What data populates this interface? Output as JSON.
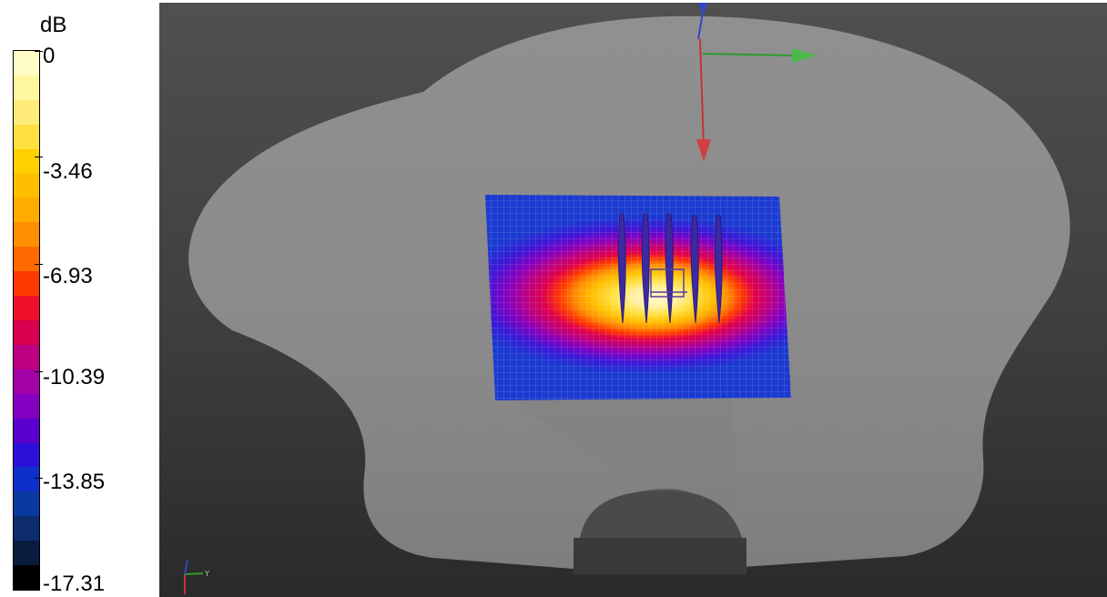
{
  "legend": {
    "unit": "dB",
    "ticks": [
      {
        "label": "0",
        "value": 0
      },
      {
        "label": "-3.46",
        "value": -3.46
      },
      {
        "label": "-6.93",
        "value": -6.93
      },
      {
        "label": "-10.39",
        "value": -10.39
      },
      {
        "label": "-13.85",
        "value": -13.85
      },
      {
        "label": "-17.31",
        "value": -17.31
      }
    ],
    "min": -17.31,
    "max": 0,
    "colors": [
      "#fffcc8",
      "#fff6a0",
      "#ffec78",
      "#ffe040",
      "#ffd000",
      "#ffbf00",
      "#ffab00",
      "#ff8f00",
      "#ff6a00",
      "#ff3a00",
      "#f0102a",
      "#d8004e",
      "#bd0080",
      "#a300a8",
      "#8400c0",
      "#5a00cc",
      "#2a10d8",
      "#0f30c8",
      "#0a3aa0",
      "#0c2c6e",
      "#081c40",
      "#000000"
    ]
  },
  "viewport": {
    "background_top": "#505050",
    "background_bottom": "#2a2a2a",
    "body_color": "#8c8c8c",
    "axis_colors": {
      "x": "#2c9b2c",
      "y": "#c83232",
      "z": "#3246c8"
    }
  }
}
